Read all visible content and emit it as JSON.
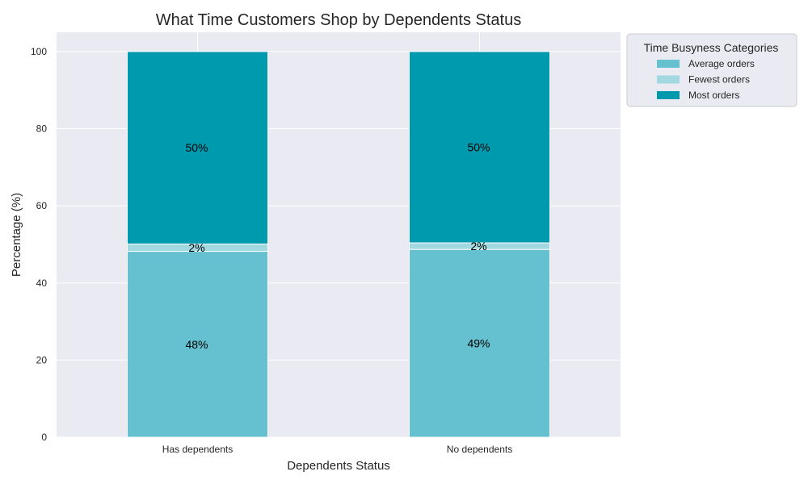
{
  "chart_data": {
    "type": "bar",
    "stacked": true,
    "title": "What Time Customers Shop by Dependents Status",
    "xlabel": "Dependents Status",
    "ylabel": "Percentage (%)",
    "ylim": [
      0,
      105
    ],
    "yticks": [
      0,
      20,
      40,
      60,
      80,
      100
    ],
    "grid": true,
    "categories": [
      "Has dependents",
      "No dependents"
    ],
    "series": [
      {
        "name": "Average orders",
        "values": [
          48.2,
          48.7
        ],
        "color": "#65c1cf",
        "labels": [
          "48%",
          "49%"
        ]
      },
      {
        "name": "Fewest orders",
        "values": [
          1.9,
          1.7
        ],
        "color": "#a2d8e0",
        "labels": [
          "2%",
          "2%"
        ]
      },
      {
        "name": "Most orders",
        "values": [
          49.9,
          49.6
        ],
        "color": "#009aae",
        "labels": [
          "50%",
          "50%"
        ]
      }
    ],
    "legend": {
      "title": "Time Busyness Categories",
      "placement": "outside-top-right"
    }
  }
}
